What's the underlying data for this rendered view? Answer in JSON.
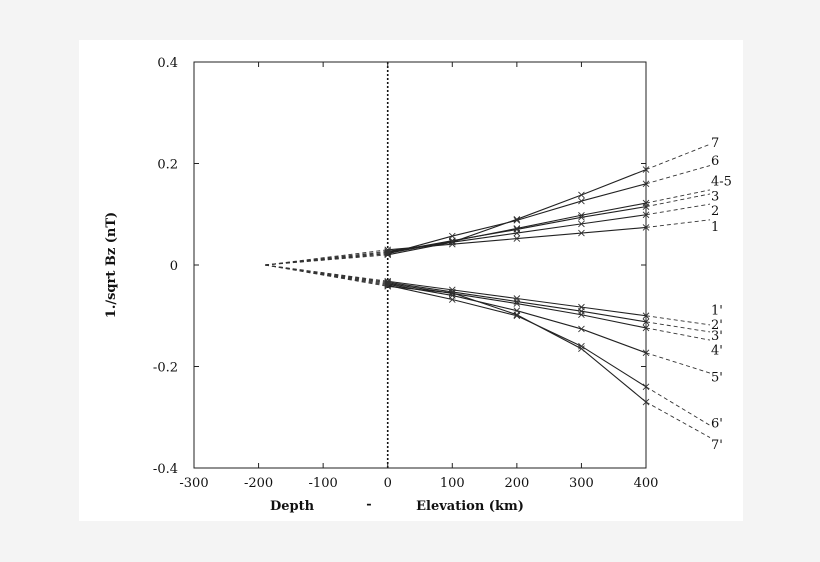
{
  "chart_data": {
    "type": "line",
    "title": "",
    "ylabel": "1./sqrt Bz (nT)",
    "xlabel_left": "Depth",
    "xlabel_separator": "-",
    "xlabel_right": "Elevation (km)",
    "xlim": [
      -300,
      400
    ],
    "ylim": [
      -0.4,
      0.4
    ],
    "xticks": [
      -300,
      -200,
      -100,
      0,
      100,
      200,
      300,
      400
    ],
    "xtick_labels": [
      "-300",
      "-200",
      "-100",
      "0",
      "100",
      "200",
      "300",
      "400"
    ],
    "yticks": [
      -0.4,
      -0.2,
      0,
      0.2,
      0.4
    ],
    "ytick_labels": [
      "-0.4",
      "-0.2",
      "0",
      "0.2",
      "0.4"
    ],
    "grid": false,
    "vertical_marker_x": 0,
    "observed_x": [
      0,
      100,
      200,
      300,
      400
    ],
    "extrapolation_x": [
      -190,
      500
    ],
    "series": [
      {
        "name": "1",
        "values": [
          0.03,
          0.041,
          0.052,
          0.063,
          0.074
        ],
        "extrap": [
          0.0,
          0.089
        ]
      },
      {
        "name": "2",
        "values": [
          0.027,
          0.045,
          0.063,
          0.081,
          0.099
        ],
        "extrap": [
          0.0,
          0.12
        ]
      },
      {
        "name": "3",
        "values": [
          0.025,
          0.048,
          0.07,
          0.094,
          0.115
        ],
        "extrap": [
          0.0,
          0.14
        ]
      },
      {
        "name": "4-5",
        "values": [
          0.023,
          0.047,
          0.072,
          0.098,
          0.122
        ],
        "extrap": [
          0.0,
          0.148
        ]
      },
      {
        "name": "6",
        "values": [
          0.022,
          0.057,
          0.088,
          0.126,
          0.16
        ],
        "extrap": [
          0.0,
          0.196
        ]
      },
      {
        "name": "7",
        "values": [
          0.02,
          0.045,
          0.09,
          0.138,
          0.188
        ],
        "extrap": [
          0.0,
          0.238
        ]
      },
      {
        "name": "1'",
        "values": [
          -0.032,
          -0.049,
          -0.066,
          -0.083,
          -0.1
        ],
        "extrap": [
          0.0,
          -0.118
        ]
      },
      {
        "name": "2'",
        "values": [
          -0.034,
          -0.053,
          -0.072,
          -0.091,
          -0.112
        ],
        "extrap": [
          0.0,
          -0.132
        ]
      },
      {
        "name": "3'",
        "values": [
          -0.036,
          -0.056,
          -0.076,
          -0.098,
          -0.124
        ],
        "extrap": [
          0.0,
          -0.148
        ]
      },
      {
        "name": "4'",
        "values": [
          -0.038,
          -0.06,
          -0.09,
          -0.126,
          -0.173
        ],
        "extrap": [
          0.0,
          -0.213
        ]
      },
      {
        "name": "5'",
        "values": [
          -0.04,
          -0.068,
          -0.1,
          -0.16,
          -0.24
        ],
        "extrap": [
          0.0,
          -0.316
        ]
      },
      {
        "name": "6'",
        "values": [
          -0.042,
          -0.055,
          -0.098,
          -0.165,
          -0.27
        ],
        "extrap": [
          0.0,
          -0.34
        ]
      }
    ],
    "labels_right": [
      {
        "text": "7",
        "y": 0.24
      },
      {
        "text": "6",
        "y": 0.205
      },
      {
        "text": "4-5",
        "y": 0.165
      },
      {
        "text": "3",
        "y": 0.135
      },
      {
        "text": "2",
        "y": 0.106
      },
      {
        "text": "1",
        "y": 0.075
      },
      {
        "text": "1'",
        "y": -0.09
      },
      {
        "text": "2'",
        "y": -0.118
      },
      {
        "text": "3'",
        "y": -0.14
      },
      {
        "text": "4'",
        "y": -0.168
      },
      {
        "text": "5'",
        "y": -0.222
      },
      {
        "text": "6'",
        "y": -0.312
      },
      {
        "text": "7'",
        "y": -0.355
      }
    ]
  }
}
